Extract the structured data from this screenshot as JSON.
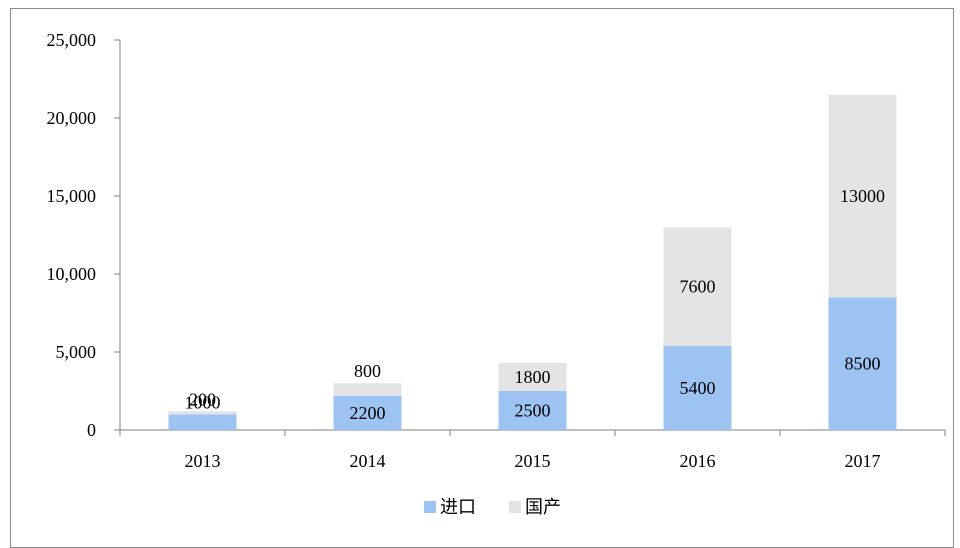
{
  "chart_data": {
    "type": "bar",
    "stacked": true,
    "categories": [
      "2013",
      "2014",
      "2015",
      "2016",
      "2017"
    ],
    "series": [
      {
        "name": "进口",
        "color": "#9dc3f2",
        "values": [
          1000,
          2200,
          2500,
          5400,
          8500
        ],
        "labels": [
          "1000",
          "2200",
          "2500",
          "5400",
          "8500"
        ]
      },
      {
        "name": "国产",
        "color": "#e4e4e4",
        "values": [
          200,
          800,
          1800,
          7600,
          13000
        ],
        "labels": [
          "200",
          "800",
          "1800",
          "7600",
          "13000"
        ]
      }
    ],
    "y_ticks": [
      0,
      5000,
      10000,
      15000,
      20000,
      25000
    ],
    "y_tick_labels": [
      "0",
      "5,000",
      "10,000",
      "15,000",
      "20,000",
      "25,000"
    ],
    "ylim": [
      0,
      25000
    ],
    "grid": false,
    "legend": "bottom-center"
  }
}
